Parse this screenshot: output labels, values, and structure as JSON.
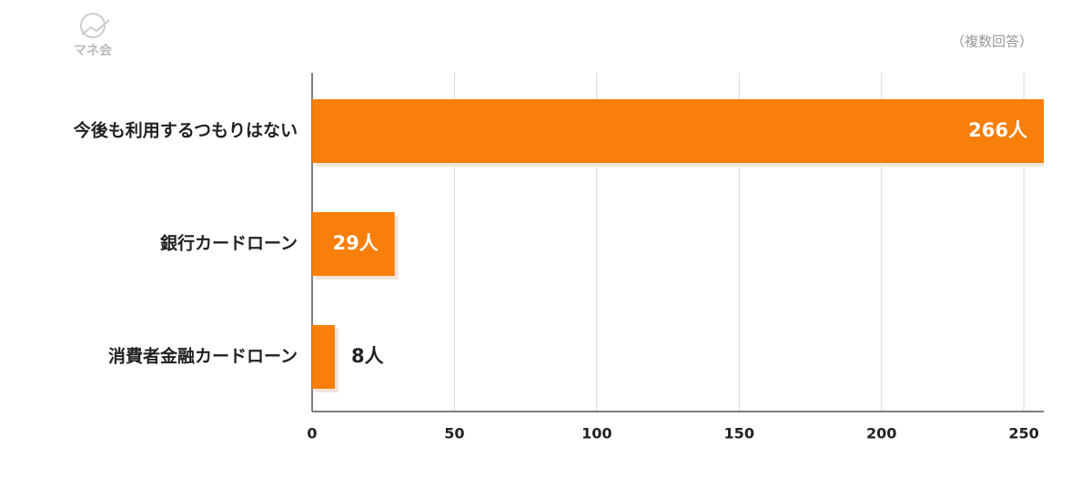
{
  "chart_data": {
    "type": "bar",
    "orientation": "horizontal",
    "note": "（複数回答）",
    "logo": "マネ会",
    "categories": [
      "今後も利用するつもりはない",
      "銀行カードローン",
      "消費者金融カードローン"
    ],
    "values": [
      266,
      29,
      8
    ],
    "value_labels": [
      "266人",
      "29人",
      "8人"
    ],
    "color": "#f77f0a",
    "xlim": [
      0,
      257
    ],
    "xticks": [
      0,
      50,
      100,
      150,
      200,
      250
    ],
    "grid": true
  }
}
